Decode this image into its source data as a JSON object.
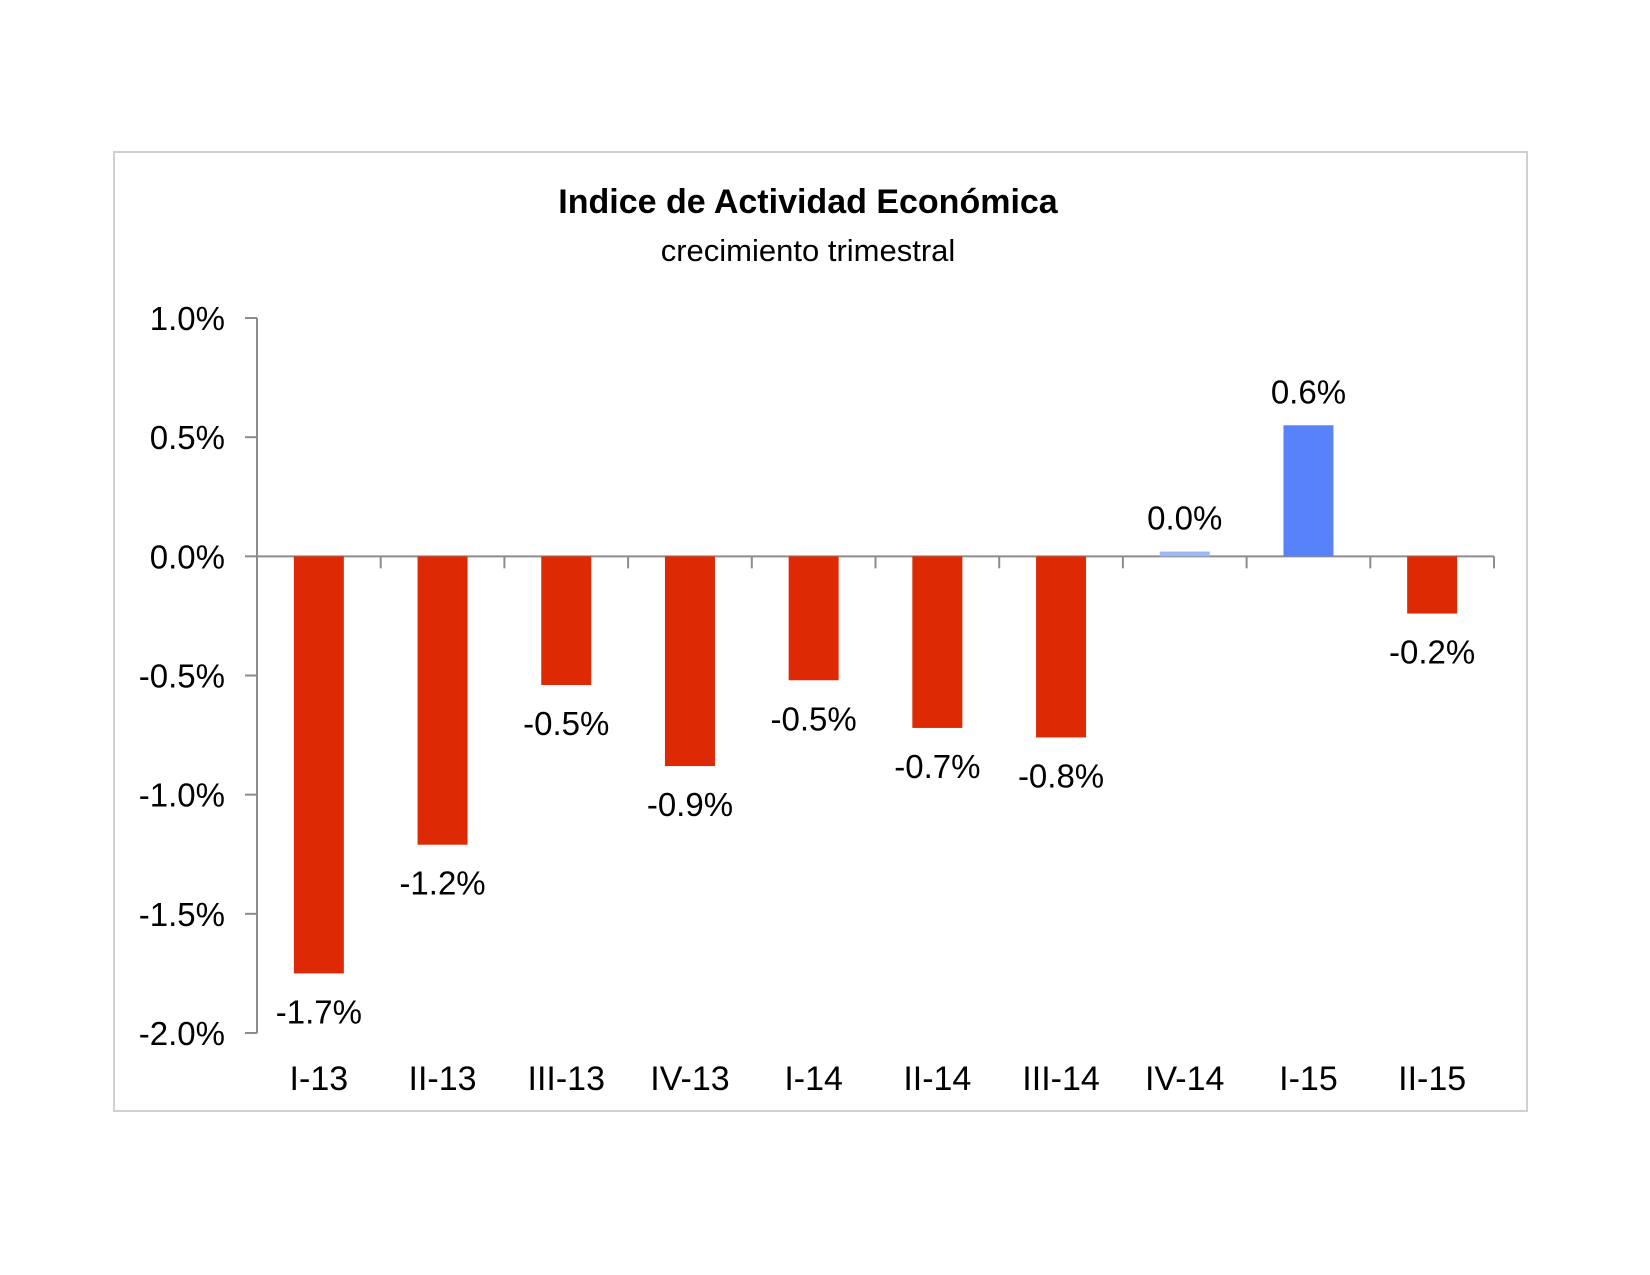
{
  "chart_data": {
    "type": "bar",
    "title": "Indice de Actividad Económica",
    "subtitle": "crecimiento trimestral",
    "xlabel": "",
    "ylabel": "",
    "categories": [
      "I-13",
      "II-13",
      "III-13",
      "IV-13",
      "I-14",
      "II-14",
      "III-14",
      "IV-14",
      "I-15",
      "II-15"
    ],
    "values": [
      -1.75,
      -1.21,
      -0.54,
      -0.88,
      -0.52,
      -0.72,
      -0.76,
      0.02,
      0.55,
      -0.24
    ],
    "data_labels": [
      "-1.7%",
      "-1.2%",
      "-0.5%",
      "-0.9%",
      "-0.5%",
      "-0.7%",
      "-0.8%",
      "0.0%",
      "0.6%",
      "-0.2%"
    ],
    "ylim": [
      -2.0,
      1.0
    ],
    "yticks": [
      1.0,
      0.5,
      0.0,
      -0.5,
      -1.0,
      -1.5,
      -2.0
    ],
    "ytick_labels": [
      "1.0%",
      "0.5%",
      "0.0%",
      "-0.5%",
      "-1.0%",
      "-1.5%",
      "-2.0%"
    ],
    "colors": {
      "negative": "#dd2a05",
      "positive": "#5882fa",
      "zero": "#9db9f5"
    },
    "grid": false,
    "legend": "none"
  }
}
